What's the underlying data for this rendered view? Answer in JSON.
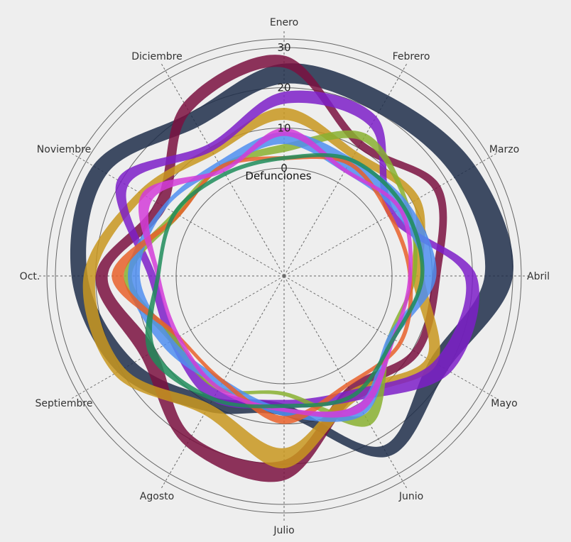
{
  "chart_data": {
    "type": "area",
    "subtype": "radial-band",
    "categories": [
      "Enero",
      "Febrero",
      "Marzo",
      "Abril",
      "Mayo",
      "Junio",
      "Julio",
      "Agosto",
      "Septiembre",
      "Oct.",
      "Noviembre",
      "Diciembre"
    ],
    "radial_label": "Defunciones",
    "radial_ticks": [
      0,
      10,
      20,
      30
    ],
    "rlim": [
      0,
      30
    ],
    "grid": true,
    "legend": "none",
    "series": [
      {
        "color": "#1f2e4a",
        "inner": [
          21,
          20,
          22,
          23,
          15,
          22,
          5,
          8,
          16,
          22,
          24,
          16
        ],
        "outer": [
          26,
          25,
          28,
          30,
          20,
          25,
          8,
          12,
          21,
          26,
          28,
          20
        ]
      },
      {
        "color": "#7a1040",
        "inner": [
          25,
          10,
          16,
          10,
          10,
          5,
          19,
          19,
          10,
          17,
          7,
          20
        ],
        "outer": [
          28,
          12,
          18,
          12,
          12,
          8,
          24,
          22,
          14,
          20,
          10,
          23
        ]
      },
      {
        "color": "#c8961f",
        "inner": [
          12,
          7,
          10,
          5,
          14,
          6,
          16,
          10,
          19,
          20,
          13,
          8
        ],
        "outer": [
          15,
          9,
          12,
          8,
          17,
          9,
          21,
          13,
          22,
          23,
          15,
          10
        ]
      },
      {
        "color": "#7d1ec8",
        "inner": [
          16,
          16,
          3,
          18,
          16,
          6,
          4,
          6,
          4,
          5,
          18,
          9
        ],
        "outer": [
          19,
          19,
          5,
          21,
          21,
          9,
          6,
          9,
          6,
          7,
          21,
          11
        ]
      },
      {
        "color": "#88b030",
        "inner": [
          4,
          12,
          8,
          5,
          3,
          13,
          2,
          5,
          4,
          11,
          3,
          4
        ],
        "outer": [
          6,
          14,
          9,
          6,
          4,
          16,
          3,
          6,
          6,
          13,
          5,
          5
        ]
      },
      {
        "color": "#4f8ef0",
        "inner": [
          6,
          3,
          5,
          8,
          3,
          10,
          6,
          3,
          5,
          9,
          7,
          4
        ],
        "outer": [
          9,
          7,
          9,
          11,
          5,
          13,
          8,
          5,
          8,
          12,
          8,
          6
        ]
      },
      {
        "color": "#e8602a",
        "inner": [
          2,
          5,
          3,
          4,
          6,
          4,
          8,
          3,
          3,
          13,
          3,
          4
        ],
        "outer": [
          3,
          6,
          4,
          5,
          7,
          5,
          10,
          4,
          4,
          16,
          4,
          5
        ]
      },
      {
        "color": "#d23cd8",
        "inner": [
          8,
          3,
          6,
          4,
          4,
          10,
          6,
          5,
          3,
          4,
          11,
          3
        ],
        "outer": [
          10,
          4,
          7,
          5,
          5,
          12,
          7,
          6,
          4,
          5,
          14,
          4
        ]
      },
      {
        "color": "#1e8c5a",
        "inner": [
          2,
          6,
          7,
          7,
          4,
          7,
          5,
          8,
          10,
          4,
          4,
          2
        ],
        "outer": [
          3,
          7,
          8,
          8,
          5,
          8,
          6,
          9,
          12,
          5,
          5,
          3
        ]
      }
    ]
  }
}
